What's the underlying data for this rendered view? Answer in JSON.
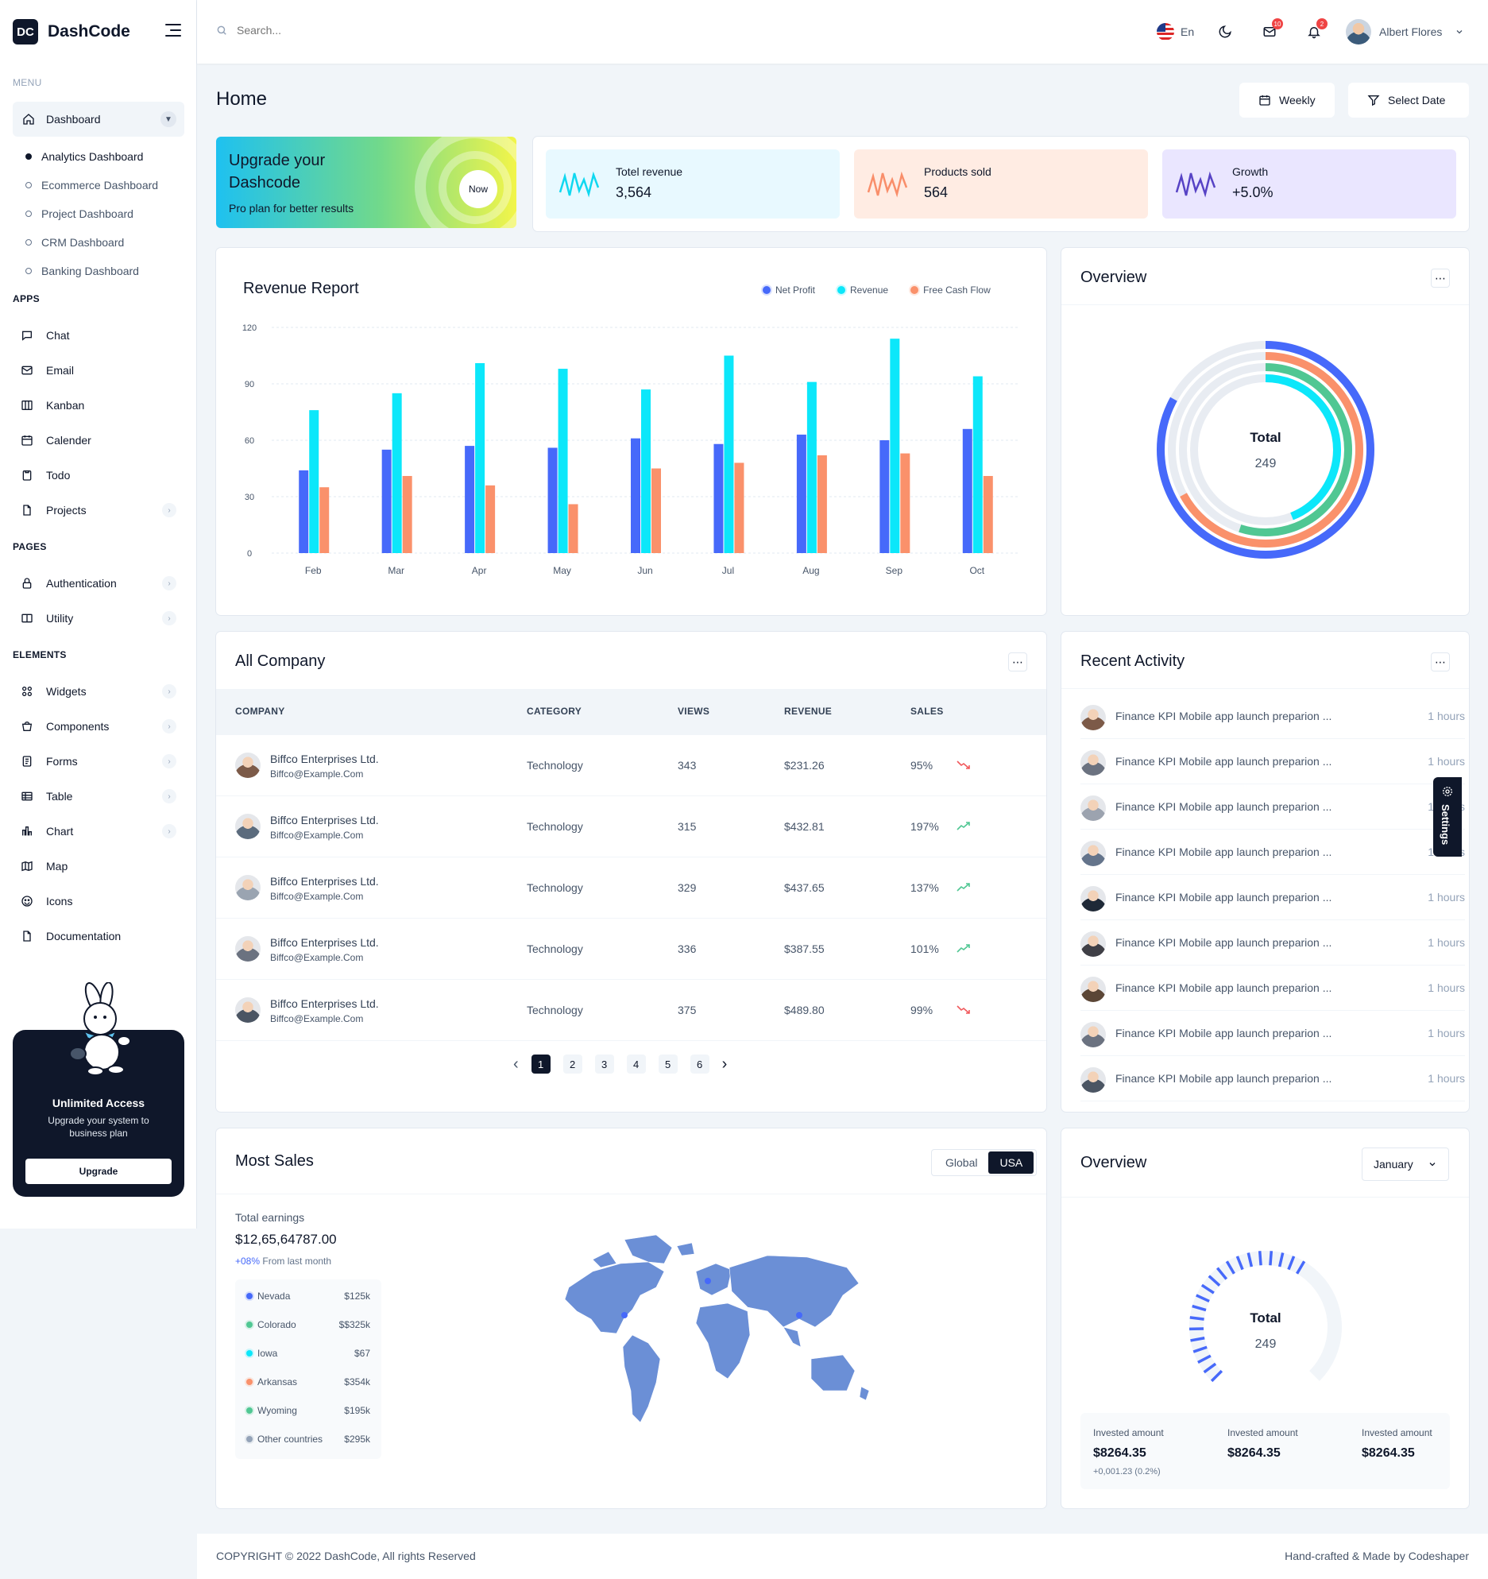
{
  "brand": {
    "logo": "DC",
    "name": "DashCode"
  },
  "sidebar": {
    "menu_label": "MENU",
    "dashboard": {
      "label": "Dashboard",
      "icon": "home-icon"
    },
    "dashboard_sub": [
      "Analytics Dashboard",
      "Ecommerce Dashboard",
      "Project Dashboard",
      "CRM Dashboard",
      "Banking Dashboard"
    ],
    "apps_label": "APPS",
    "apps": [
      {
        "label": "Chat",
        "icon": "chat-icon"
      },
      {
        "label": "Email",
        "icon": "mail-icon"
      },
      {
        "label": "Kanban",
        "icon": "kanban-icon"
      },
      {
        "label": "Calender",
        "icon": "calendar-icon"
      },
      {
        "label": "Todo",
        "icon": "clipboard-icon"
      },
      {
        "label": "Projects",
        "icon": "document-icon"
      }
    ],
    "pages_label": "PAGES",
    "pages": [
      {
        "label": "Authentication",
        "icon": "lock-icon"
      },
      {
        "label": "Utility",
        "icon": "book-icon"
      }
    ],
    "elements_label": "ELEMENTS",
    "elements": [
      {
        "label": "Widgets",
        "icon": "grid-icon"
      },
      {
        "label": "Components",
        "icon": "bag-icon"
      },
      {
        "label": "Forms",
        "icon": "form-icon"
      },
      {
        "label": "Table",
        "icon": "table-icon"
      },
      {
        "label": "Chart",
        "icon": "chart-icon"
      },
      {
        "label": "Map",
        "icon": "map-icon"
      },
      {
        "label": "Icons",
        "icon": "smile-icon"
      },
      {
        "label": "Documentation",
        "icon": "document-icon"
      }
    ],
    "promo": {
      "title": "Unlimited Access",
      "text": "Upgrade your system to business plan",
      "button": "Upgrade"
    }
  },
  "topbar": {
    "search_placeholder": "Search...",
    "language": "En",
    "mail_badge": "10",
    "notif_badge": "2",
    "user_name": "Albert Flores"
  },
  "page": {
    "title": "Home",
    "weekly_btn": "Weekly",
    "select_date_btn": "Select Date"
  },
  "upgrade_card": {
    "title": "Upgrade your Dashcode",
    "subtitle": "Pro plan for better results",
    "button": "Now"
  },
  "stats": [
    {
      "label": "Totel revenue",
      "value": "3,564",
      "color": "#e8f9ff",
      "stroke": "#10d8f0"
    },
    {
      "label": "Products sold",
      "value": "564",
      "color": "#ffece3",
      "stroke": "#f98e6a"
    },
    {
      "label": "Growth",
      "value": "+5.0%",
      "color": "#eae6ff",
      "stroke": "#5743c5"
    }
  ],
  "revenue_report": {
    "title": "Revenue Report"
  },
  "chart_data": [
    {
      "type": "bar",
      "title": "Revenue Report",
      "categories": [
        "Feb",
        "Mar",
        "Apr",
        "May",
        "Jun",
        "Jul",
        "Aug",
        "Sep",
        "Oct"
      ],
      "series": [
        {
          "name": "Net Profit",
          "color": "#4669fa",
          "values": [
            44,
            55,
            57,
            56,
            61,
            58,
            63,
            60,
            66
          ]
        },
        {
          "name": "Revenue",
          "color": "#0ce7fa",
          "values": [
            76,
            85,
            101,
            98,
            87,
            105,
            91,
            114,
            94
          ]
        },
        {
          "name": "Free Cash Flow",
          "color": "#fa916b",
          "values": [
            35,
            41,
            36,
            26,
            45,
            48,
            52,
            53,
            41
          ]
        }
      ],
      "yticks": [
        "0",
        "30",
        "60",
        "90",
        "120"
      ],
      "ylim": [
        0,
        120
      ],
      "legend": "top-right"
    },
    {
      "type": "radialBar",
      "title": "Overview",
      "center_label": "Total",
      "center_value": "249",
      "values": [
        44,
        55,
        67,
        83
      ],
      "colors": [
        "#0ce7fa",
        "#50c793",
        "#fa916b",
        "#4669fa"
      ]
    },
    {
      "type": "radialBar",
      "title": "Overview",
      "center_label": "Total",
      "center_value": "249",
      "values": [
        62
      ],
      "colors": [
        "#4669fa"
      ]
    }
  ],
  "overview": {
    "title": "Overview",
    "total_label": "Total",
    "total_value": "249"
  },
  "company": {
    "title": "All Company",
    "headers": [
      "COMPANY",
      "CATEGORY",
      "VIEWS",
      "REVENUE",
      "SALES"
    ],
    "rows": [
      {
        "name": "Biffco Enterprises Ltd.",
        "email": "Biffco@Example.Com",
        "category": "Technology",
        "views": "343",
        "revenue": "$231.26",
        "sales": "95%",
        "trend": "down"
      },
      {
        "name": "Biffco Enterprises Ltd.",
        "email": "Biffco@Example.Com",
        "category": "Technology",
        "views": "315",
        "revenue": "$432.81",
        "sales": "197%",
        "trend": "up"
      },
      {
        "name": "Biffco Enterprises Ltd.",
        "email": "Biffco@Example.Com",
        "category": "Technology",
        "views": "329",
        "revenue": "$437.65",
        "sales": "137%",
        "trend": "up"
      },
      {
        "name": "Biffco Enterprises Ltd.",
        "email": "Biffco@Example.Com",
        "category": "Technology",
        "views": "336",
        "revenue": "$387.55",
        "sales": "101%",
        "trend": "up"
      },
      {
        "name": "Biffco Enterprises Ltd.",
        "email": "Biffco@Example.Com",
        "category": "Technology",
        "views": "375",
        "revenue": "$489.80",
        "sales": "99%",
        "trend": "down"
      }
    ],
    "pages": [
      "1",
      "2",
      "3",
      "4",
      "5",
      "6"
    ]
  },
  "activity": {
    "title": "Recent Activity",
    "items": [
      {
        "text": "Finance KPI Mobile app launch preparion ...",
        "time": "1 hours"
      },
      {
        "text": "Finance KPI Mobile app launch preparion ...",
        "time": "1 hours"
      },
      {
        "text": "Finance KPI Mobile app launch preparion ...",
        "time": "1 hours"
      },
      {
        "text": "Finance KPI Mobile app launch preparion ...",
        "time": "1 hours"
      },
      {
        "text": "Finance KPI Mobile app launch preparion ...",
        "time": "1 hours"
      },
      {
        "text": "Finance KPI Mobile app launch preparion ...",
        "time": "1 hours"
      },
      {
        "text": "Finance KPI Mobile app launch preparion ...",
        "time": "1 hours"
      },
      {
        "text": "Finance KPI Mobile app launch preparion ...",
        "time": "1 hours"
      },
      {
        "text": "Finance KPI Mobile app launch preparion ...",
        "time": "1 hours"
      }
    ]
  },
  "settings_tab": "Settings",
  "most_sales": {
    "title": "Most Sales",
    "toggle": [
      "Global",
      "USA"
    ],
    "earnings_label": "Total earnings",
    "earnings_value": "$12,65,64787.00",
    "change": "+08%",
    "change_text": "From last month",
    "states": [
      {
        "name": "Nevada",
        "value": "$125k",
        "color": "#4669fa"
      },
      {
        "name": "Colorado",
        "value": "$$325k",
        "color": "#50c793"
      },
      {
        "name": "Iowa",
        "value": "$67",
        "color": "#0ce7fa"
      },
      {
        "name": "Arkansas",
        "value": "$354k",
        "color": "#fa916b"
      },
      {
        "name": "Wyoming",
        "value": "$195k",
        "color": "#50c793"
      },
      {
        "name": "Other countries",
        "value": "$295k",
        "color": "#94a3b8"
      }
    ]
  },
  "overview2": {
    "title": "Overview",
    "month": "January",
    "total_label": "Total",
    "total_value": "249",
    "invested": [
      {
        "label": "Invested amount",
        "amount": "$8264.35",
        "delta": "+0,001.23 (0.2%)"
      },
      {
        "label": "Invested amount",
        "amount": "$8264.35",
        "delta": ""
      },
      {
        "label": "Invested amount",
        "amount": "$8264.35",
        "delta": ""
      }
    ]
  },
  "footer": {
    "left": "COPYRIGHT © 2022 DashCode, All rights Reserved",
    "right": "Hand-crafted & Made by Codeshaper"
  }
}
